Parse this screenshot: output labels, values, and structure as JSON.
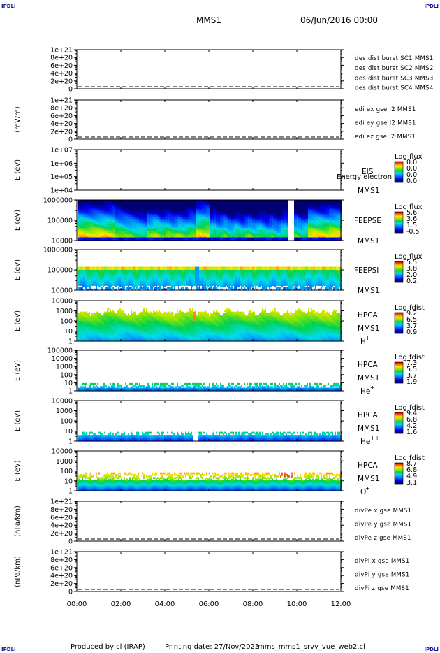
{
  "corner_label": "IPDLI",
  "header": {
    "spacecraft": "MMS1",
    "date": "06/Jun/2016 00:00"
  },
  "footer": {
    "produced_by": "Produced by cl (IRAP)",
    "printing_date": "Printing date: 27/Nov/2023",
    "script": "mms_mms1_srvy_vue_web2.cl"
  },
  "colors": {
    "mms1": "#0000c0",
    "mms2": "#d000d0",
    "mms3": "#d00000",
    "mms4": "#00b000",
    "x": "#d00000",
    "y": "#00b000",
    "z": "#0000c0"
  },
  "chart_data": [
    {
      "type": "line",
      "ylabel": "",
      "yticks": [
        "1e+21",
        "8e+20",
        "6e+20",
        "4e+20",
        "2e+20",
        "0"
      ],
      "ylim": [
        0,
        1e+21
      ],
      "legend": [
        {
          "label": "des dist burst SC1 MMS1",
          "color_key": "mms1"
        },
        {
          "label": "des dist burst SC2 MMS2",
          "color_key": "mms2"
        },
        {
          "label": "des dist burst SC3 MMS3",
          "color_key": "mms3"
        },
        {
          "label": "des dist burst SC4 MMS4",
          "color_key": "mms4"
        }
      ]
    },
    {
      "type": "line",
      "ylabel": "(mV/m)",
      "yticks": [
        "1e+21",
        "8e+20",
        "6e+20",
        "4e+20",
        "2e+20",
        "0"
      ],
      "ylim": [
        0,
        1e+21
      ],
      "legend": [
        {
          "label": "edi ex gse l2 MMS1",
          "color_key": "x"
        },
        {
          "label": "edi ey gse l2 MMS1",
          "color_key": "y"
        },
        {
          "label": "edi ez gse l2 MMS1",
          "color_key": "z"
        }
      ]
    },
    {
      "type": "heatmap",
      "ylabel": "E (eV)",
      "yticks": [
        "1e+07",
        "1e+06",
        "1e+05",
        "1e+04"
      ],
      "log_y": true,
      "labels": [
        "EIS",
        "MMS1"
      ],
      "overlay_text": "Energy electron to",
      "colorbar": {
        "title": "Log flux",
        "ticks": [
          "0.0",
          "0.0",
          "0.0",
          "0.0"
        ]
      },
      "empty": true
    },
    {
      "type": "heatmap",
      "ylabel": "E (eV)",
      "yticks": [
        "1000000",
        "100000",
        "10000"
      ],
      "log_y": true,
      "labels": [
        "FEEPSE",
        "MMS1"
      ],
      "colorbar": {
        "title": "Log flux",
        "ticks": [
          "5.6",
          "3.6",
          "1.5",
          "-0.5"
        ]
      },
      "profile": "feepse"
    },
    {
      "type": "heatmap",
      "ylabel": "E (eV)",
      "yticks": [
        "1000000",
        "100000",
        "10000"
      ],
      "log_y": true,
      "labels": [
        "FEEPSI",
        "MMS1"
      ],
      "colorbar": {
        "title": "Log flux",
        "ticks": [
          "5.5",
          "3.8",
          "2.0",
          "0.2"
        ]
      },
      "profile": "feepsi"
    },
    {
      "type": "heatmap",
      "ylabel": "E (eV)",
      "yticks": [
        "10000",
        "1000",
        "100",
        "10",
        "1"
      ],
      "log_y": true,
      "labels": [
        "HPCA",
        "MMS1"
      ],
      "species": "H",
      "charge": "+",
      "colorbar": {
        "title": "Log fdist",
        "ticks": [
          "9.2",
          "6.5",
          "3.7",
          "0.9"
        ]
      },
      "profile": "hplus"
    },
    {
      "type": "heatmap",
      "ylabel": "E (eV)",
      "yticks": [
        "100000",
        "10000",
        "1000",
        "100",
        "10",
        "1"
      ],
      "log_y": true,
      "labels": [
        "HPCA",
        "MMS1"
      ],
      "species": "He",
      "charge": "+",
      "colorbar": {
        "title": "Log fdist",
        "ticks": [
          "7.3",
          "5.5",
          "3.7",
          "1.9"
        ]
      },
      "profile": "heplus"
    },
    {
      "type": "heatmap",
      "ylabel": "E (eV)",
      "yticks": [
        "10000",
        "1000",
        "100",
        "10",
        "1"
      ],
      "log_y": true,
      "labels": [
        "HPCA",
        "MMS1"
      ],
      "species": "He",
      "charge": "++",
      "colorbar": {
        "title": "Log fdist",
        "ticks": [
          "9.4",
          "6.8",
          "4.2",
          "1.6"
        ]
      },
      "profile": "heplusplus"
    },
    {
      "type": "heatmap",
      "ylabel": "E (eV)",
      "yticks": [
        "10000",
        "1000",
        "100",
        "10",
        "1"
      ],
      "log_y": true,
      "labels": [
        "HPCA",
        "MMS1"
      ],
      "species": "O",
      "charge": "+",
      "colorbar": {
        "title": "Log fdist",
        "ticks": [
          "8.7",
          "6.8",
          "4.9",
          "3.1"
        ]
      },
      "profile": "oplus"
    },
    {
      "type": "line",
      "ylabel": "(nPa/km)",
      "yticks": [
        "1e+21",
        "8e+20",
        "6e+20",
        "4e+20",
        "2e+20",
        "0"
      ],
      "ylim": [
        0,
        1e+21
      ],
      "legend": [
        {
          "label": "divPe x gse MMS1",
          "color_key": "x"
        },
        {
          "label": "divPe y gse MMS1",
          "color_key": "y"
        },
        {
          "label": "divPe z gse MMS1",
          "color_key": "z"
        }
      ]
    },
    {
      "type": "line",
      "ylabel": "(nPa/km)",
      "yticks": [
        "1e+21",
        "8e+20",
        "6e+20",
        "4e+20",
        "2e+20",
        "0"
      ],
      "ylim": [
        0,
        1e+21
      ],
      "legend": [
        {
          "label": "divPi x gse MMS1",
          "color_key": "x"
        },
        {
          "label": "divPi y gse MMS1",
          "color_key": "y"
        },
        {
          "label": "divPi z gse MMS1",
          "color_key": "z"
        }
      ]
    }
  ],
  "time_axis": {
    "ticks": [
      "00:00",
      "02:00",
      "04:00",
      "06:00",
      "08:00",
      "10:00",
      "12:00"
    ]
  }
}
